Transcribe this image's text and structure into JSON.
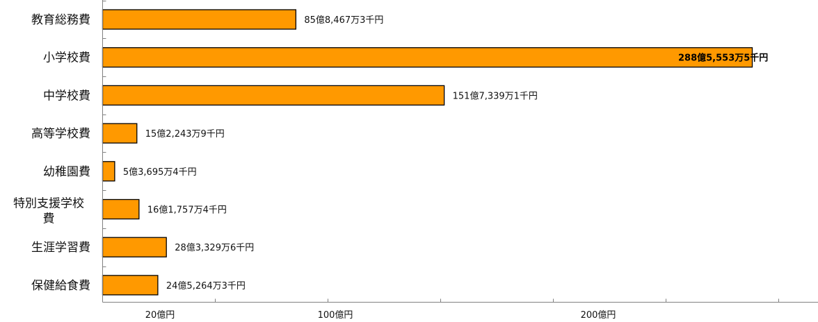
{
  "chart_data": {
    "type": "bar",
    "orientation": "horizontal",
    "categories": [
      "教育総務費",
      "小学校費",
      "中学校費",
      "高等学校費",
      "幼稚園費",
      "特別支援学校費",
      "生涯学習費",
      "保健給食費"
    ],
    "category_display_lines": [
      [
        "教育総務費"
      ],
      [
        "小学校費"
      ],
      [
        "中学校費"
      ],
      [
        "高等学校費"
      ],
      [
        "幼稚園費"
      ],
      [
        "特別支援学校",
        "費"
      ],
      [
        "生涯学習費"
      ],
      [
        "保健給食費"
      ]
    ],
    "values": [
      8584673,
      28855535,
      15173391,
      1522439,
      536954,
      1617574,
      2833296,
      2452643
    ],
    "value_unit": "千円",
    "data_labels": [
      "85億8,467万3千円",
      "288億5,553万5千円",
      "151億7,339万1千円",
      "15億2,243万9千円",
      "5億3,695万4千円",
      "16億1,757万4千円",
      "28億3,329万6千円",
      "24億5,264万3千円"
    ],
    "x_tick_labels": [
      {
        "label": "20億円",
        "value": 2000000
      },
      {
        "label": "100億円",
        "value": 10000000
      },
      {
        "label": "200億円",
        "value": 20000000
      }
    ],
    "xlim": [
      0,
      31500000
    ],
    "grid": false,
    "title": "",
    "xlabel": "",
    "ylabel": "",
    "bar_color": "#ff9900",
    "bar_border_color": "#000000"
  }
}
